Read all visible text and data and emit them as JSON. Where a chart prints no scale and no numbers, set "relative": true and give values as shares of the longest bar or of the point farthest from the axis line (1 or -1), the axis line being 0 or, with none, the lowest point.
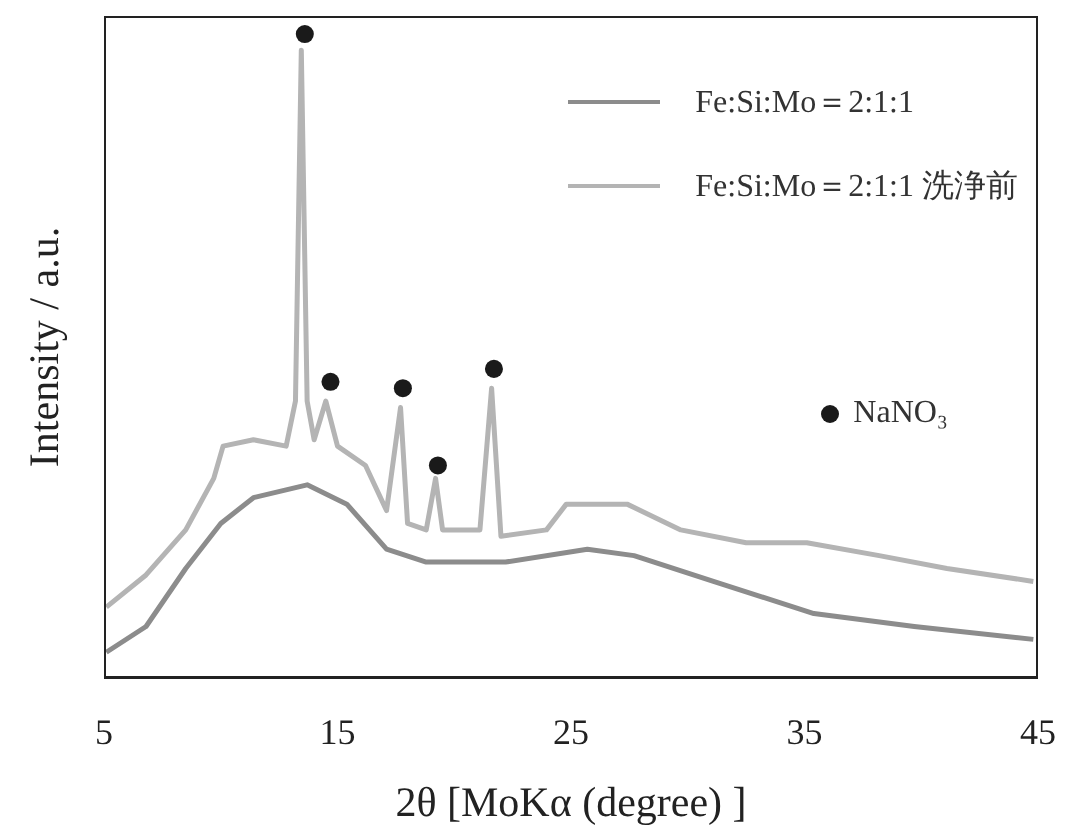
{
  "chart_data": {
    "type": "line",
    "relative": true,
    "xlabel": "2θ [MoKα (degree) ]",
    "ylabel": "Intensity / a.u.",
    "xlim": [
      5,
      45
    ],
    "xticks": [
      5,
      15,
      25,
      35,
      45
    ],
    "legend": "top right",
    "tick_labels": "x",
    "series": [
      {
        "name": "Fe:Si:Mo＝2:1:1",
        "color": "#8c8c8c",
        "marker": "none",
        "x": [
          5.1,
          6.8,
          8.5,
          10.0,
          11.4,
          13.7,
          15.4,
          17.1,
          18.8,
          22.2,
          25.7,
          27.7,
          31.1,
          35.4,
          39.7,
          44.8
        ],
        "values": [
          0.04,
          0.08,
          0.17,
          0.24,
          0.28,
          0.3,
          0.27,
          0.2,
          0.18,
          0.18,
          0.2,
          0.19,
          0.15,
          0.1,
          0.08,
          0.06
        ]
      },
      {
        "name": "Fe:Si:Mo＝2:1:1 洗浄前",
        "color": "#b4b4b4",
        "marker": "none",
        "x": [
          5.1,
          6.8,
          8.5,
          9.7,
          10.1,
          11.4,
          12.8,
          13.2,
          13.45,
          13.7,
          14.0,
          14.5,
          15.0,
          16.2,
          17.1,
          17.7,
          18.0,
          18.8,
          19.2,
          19.5,
          21.1,
          21.6,
          22.0,
          23.95,
          24.8,
          27.4,
          29.7,
          32.5,
          35.1,
          38.2,
          41.1,
          44.8
        ],
        "values": [
          0.11,
          0.16,
          0.23,
          0.31,
          0.36,
          0.37,
          0.36,
          0.43,
          0.975,
          0.43,
          0.37,
          0.43,
          0.36,
          0.33,
          0.26,
          0.42,
          0.24,
          0.23,
          0.31,
          0.23,
          0.23,
          0.45,
          0.22,
          0.23,
          0.27,
          0.27,
          0.23,
          0.21,
          0.21,
          0.19,
          0.17,
          0.15
        ]
      },
      {
        "name": "NaNO₃",
        "type": "scatter",
        "color": "#1a1a1a",
        "marker": "circle",
        "x": [
          13.6,
          14.7,
          17.8,
          19.3,
          21.7
        ],
        "values": [
          1.0,
          0.46,
          0.45,
          0.33,
          0.48
        ]
      }
    ]
  }
}
